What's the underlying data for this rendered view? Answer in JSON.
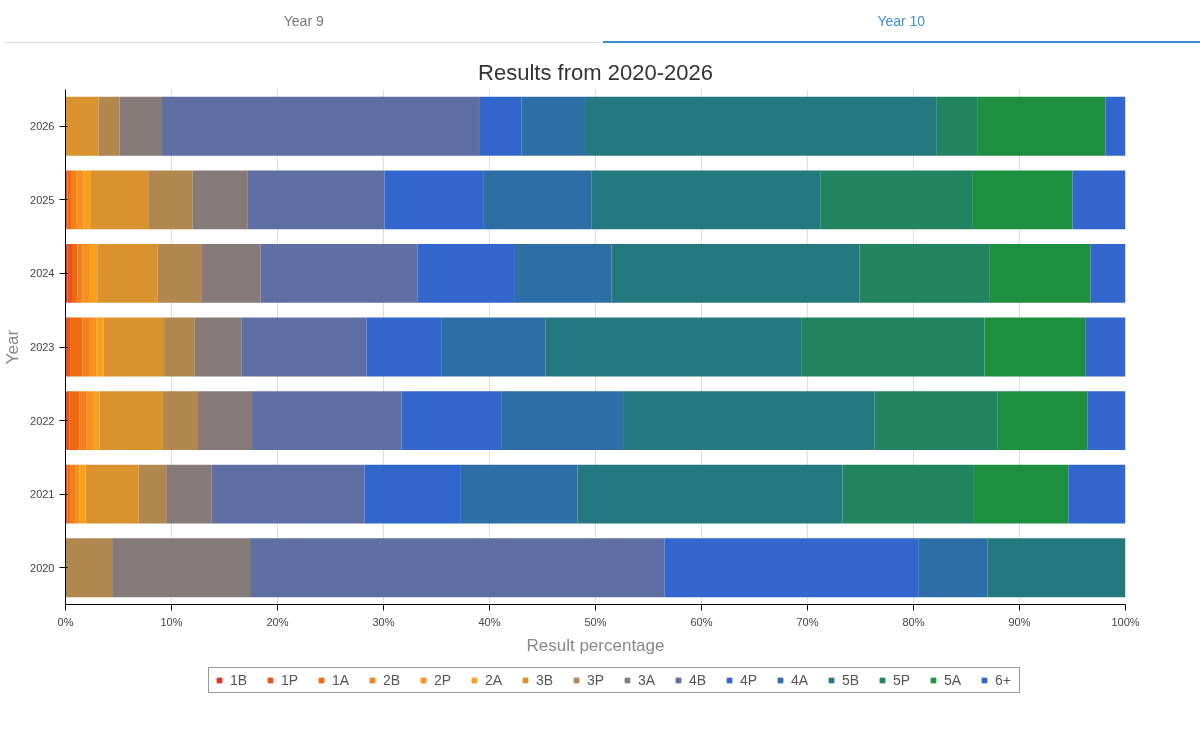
{
  "chart_data": {
    "type": "bar",
    "orientation": "horizontal",
    "stacked": true,
    "title": "Results from 2020-2026",
    "xlabel": "Result percentage",
    "ylabel": "Year",
    "annotations": [
      "Year 9",
      "Year 10"
    ],
    "categories": [
      "2026",
      "2025",
      "2024",
      "2023",
      "2022",
      "2021",
      "2020"
    ],
    "xlim": [
      0,
      100
    ],
    "xticks": [
      {
        "value": 0,
        "label": "0%"
      },
      {
        "value": 10,
        "label": "10%"
      },
      {
        "value": 20,
        "label": "20%"
      },
      {
        "value": 30,
        "label": "30%"
      },
      {
        "value": 40,
        "label": "40%"
      },
      {
        "value": 50,
        "label": "50%"
      },
      {
        "value": 60,
        "label": "60%"
      },
      {
        "value": 70,
        "label": "70%"
      },
      {
        "value": 80,
        "label": "80%"
      },
      {
        "value": 90,
        "label": "90%"
      },
      {
        "value": 100,
        "label": "100%"
      }
    ],
    "grid": "x",
    "legend": "bottom",
    "series": [
      {
        "name": "1B",
        "color": "#dd3322",
        "values": [
          0,
          0,
          0.2,
          0,
          0,
          0,
          0
        ]
      },
      {
        "name": "1P",
        "color": "#e8531c",
        "values": [
          0,
          0.2,
          0.5,
          0.5,
          0.4,
          0.2,
          0
        ]
      },
      {
        "name": "1A",
        "color": "#ee6a10",
        "values": [
          0,
          0.4,
          0.4,
          1.1,
          0.9,
          0.3,
          0
        ]
      },
      {
        "name": "2B",
        "color": "#f27f1b",
        "values": [
          0,
          0.4,
          0.5,
          0.7,
          0.7,
          0.4,
          0
        ]
      },
      {
        "name": "2P",
        "color": "#f7901e",
        "values": [
          0,
          0.7,
          0.7,
          0.6,
          0.6,
          0.4,
          0
        ]
      },
      {
        "name": "2A",
        "color": "#fba01d",
        "values": [
          0,
          0.7,
          0.7,
          0.7,
          0.6,
          0.6,
          0
        ]
      },
      {
        "name": "3B",
        "color": "#d9922e",
        "values": [
          3.1,
          5.4,
          5.7,
          5.7,
          6.0,
          5.0,
          0
        ]
      },
      {
        "name": "3P",
        "color": "#b0874f",
        "values": [
          2.0,
          4.2,
          4.1,
          2.9,
          3.3,
          2.6,
          4.4
        ]
      },
      {
        "name": "3A",
        "color": "#857a78",
        "values": [
          4.0,
          5.2,
          5.6,
          4.4,
          5.1,
          4.3,
          13.1
        ]
      },
      {
        "name": "4B",
        "color": "#5f6fa3",
        "values": [
          30.0,
          12.9,
          14.8,
          11.8,
          14.1,
          14.4,
          39.0
        ]
      },
      {
        "name": "4P",
        "color": "#3366cc",
        "values": [
          3.9,
          9.3,
          9.2,
          7.1,
          9.4,
          9.1,
          24.0
        ]
      },
      {
        "name": "4A",
        "color": "#2e6ea6",
        "values": [
          6.1,
          10.2,
          9.1,
          9.8,
          11.5,
          11.0,
          6.5
        ]
      },
      {
        "name": "5B",
        "color": "#24797f",
        "values": [
          33.1,
          21.6,
          23.4,
          24.1,
          23.7,
          25.0,
          13.0
        ]
      },
      {
        "name": "5P",
        "color": "#21845f",
        "values": [
          3.8,
          14.4,
          12.3,
          17.3,
          11.6,
          12.4,
          0
        ]
      },
      {
        "name": "5A",
        "color": "#1e8f3e",
        "values": [
          12.1,
          9.4,
          9.5,
          9.5,
          8.5,
          8.9,
          0
        ]
      },
      {
        "name": "6+",
        "color": "#3366cc",
        "values": [
          1.9,
          5.0,
          3.3,
          3.8,
          3.6,
          5.4,
          0
        ]
      }
    ]
  }
}
